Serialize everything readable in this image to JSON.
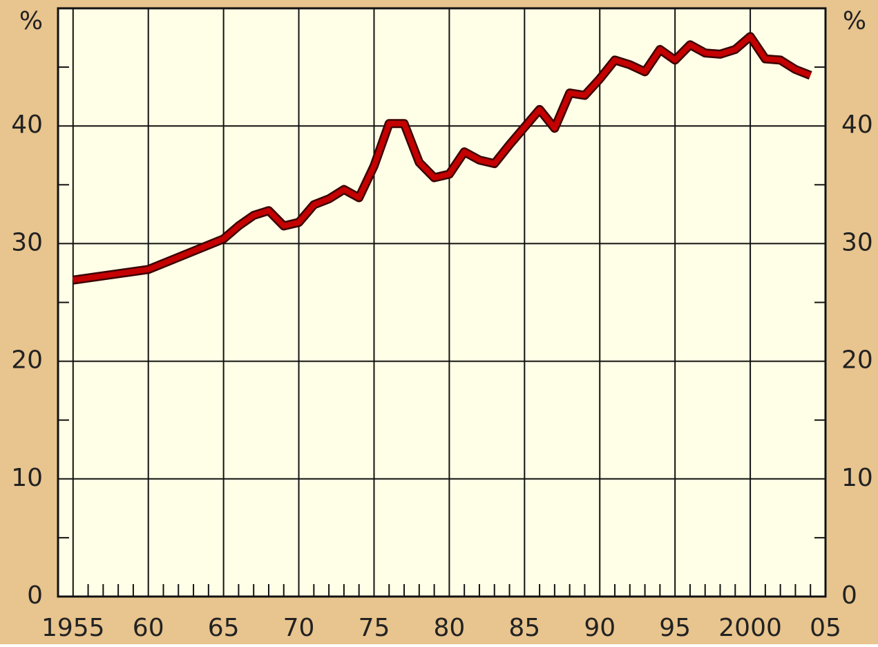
{
  "chart_data": {
    "type": "line",
    "y_unit": "%",
    "x": [
      1955,
      1960,
      1965,
      1966,
      1967,
      1968,
      1969,
      1970,
      1971,
      1972,
      1973,
      1974,
      1975,
      1976,
      1977,
      1978,
      1979,
      1980,
      1981,
      1982,
      1983,
      1984,
      1985,
      1986,
      1987,
      1988,
      1989,
      1990,
      1991,
      1992,
      1993,
      1994,
      1995,
      1996,
      1997,
      1998,
      1999,
      2000,
      2001,
      2002,
      2003,
      2004
    ],
    "series": [
      {
        "color": "#c40000",
        "values": [
          26.9,
          27.8,
          30.4,
          31.5,
          32.4,
          32.8,
          31.5,
          31.8,
          33.3,
          33.8,
          34.6,
          33.9,
          36.6,
          40.2,
          40.2,
          36.9,
          35.6,
          35.9,
          37.8,
          37.1,
          36.8,
          38.4,
          39.9,
          41.4,
          39.8,
          42.8,
          42.6,
          44.0,
          45.6,
          45.2,
          44.6,
          46.5,
          45.6,
          46.9,
          46.2,
          46.1,
          46.5,
          47.6,
          45.7,
          45.6,
          44.8,
          44.3
        ]
      }
    ],
    "xlim": [
      1954,
      2005
    ],
    "ylim": [
      0,
      50
    ],
    "xticks": [
      {
        "value": 1955,
        "label": "1955"
      },
      {
        "value": 1960,
        "label": "60"
      },
      {
        "value": 1965,
        "label": "65"
      },
      {
        "value": 1970,
        "label": "70"
      },
      {
        "value": 1975,
        "label": "75"
      },
      {
        "value": 1980,
        "label": "80"
      },
      {
        "value": 1985,
        "label": "85"
      },
      {
        "value": 1990,
        "label": "90"
      },
      {
        "value": 1995,
        "label": "95"
      },
      {
        "value": 2000,
        "label": "2000"
      },
      {
        "value": 2005,
        "label": "05"
      }
    ],
    "yticks": [
      0,
      10,
      20,
      30,
      40
    ],
    "xminorticks": [
      1956,
      1957,
      1958,
      1959,
      1961,
      1962,
      1963,
      1964,
      1966,
      1967,
      1968,
      1969,
      1971,
      1972,
      1973,
      1974,
      1976,
      1977,
      1978,
      1979,
      1981,
      1982,
      1983,
      1984,
      1986,
      1987,
      1988,
      1989,
      1991,
      1992,
      1993,
      1994,
      1996,
      1997,
      1998,
      1999,
      2001,
      2002,
      2003,
      2004
    ],
    "yminorticks": [
      5,
      15,
      25,
      35,
      45
    ],
    "grid": true,
    "background": "#e8c48e",
    "plot_background": "#fffee6"
  }
}
